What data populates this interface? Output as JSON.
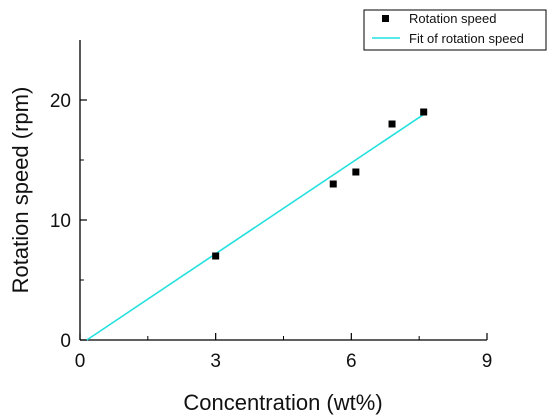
{
  "chart_data": {
    "type": "scatter",
    "xlabel": "Concentration (wt%)",
    "ylabel": "Rotation speed (rpm)",
    "xlim": [
      0,
      9
    ],
    "ylim": [
      0,
      25
    ],
    "x_ticks": [
      0,
      3,
      6,
      9
    ],
    "y_ticks": [
      0,
      10,
      20
    ],
    "grid": false,
    "legend_position": "top-right",
    "series": [
      {
        "name": "Rotation speed",
        "type": "scatter",
        "color": "#000000",
        "x": [
          3.0,
          5.6,
          6.1,
          6.9,
          7.6
        ],
        "y": [
          7,
          13,
          14,
          18,
          19
        ]
      },
      {
        "name": "Fit of rotation speed",
        "type": "line",
        "color": "#22e0e0",
        "x": [
          0.15,
          7.6
        ],
        "y": [
          0,
          18.8
        ]
      }
    ]
  }
}
